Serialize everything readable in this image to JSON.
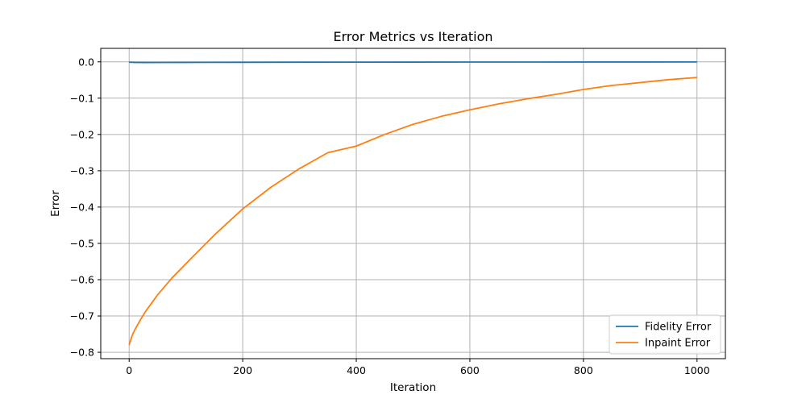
{
  "chart_data": {
    "type": "line",
    "title": "Error Metrics vs Iteration",
    "xlabel": "Iteration",
    "ylabel": "Error",
    "xlim": [
      -50,
      1050
    ],
    "ylim": [
      -0.8176,
      0.0372
    ],
    "xticks": [
      0,
      200,
      400,
      600,
      800,
      1000
    ],
    "xtick_labels": [
      "0",
      "200",
      "400",
      "600",
      "800",
      "1000"
    ],
    "yticks": [
      0.0,
      -0.1,
      -0.2,
      -0.3,
      -0.4,
      -0.5,
      -0.6,
      -0.7,
      -0.8
    ],
    "ytick_labels": [
      "0.0",
      "−0.1",
      "−0.2",
      "−0.3",
      "−0.4",
      "−0.5",
      "−0.6",
      "−0.7",
      "−0.8"
    ],
    "grid": true,
    "legend_position": "bottom-right",
    "series": [
      {
        "name": "Fidelity Error",
        "color": "#1f77b4",
        "x": [
          0,
          10,
          30,
          60,
          100,
          200,
          300,
          400,
          500,
          600,
          700,
          800,
          900,
          1000
        ],
        "y": [
          -0.001,
          -0.0015,
          -0.0018,
          -0.0017,
          -0.0015,
          -0.0012,
          -0.001,
          -0.0008,
          -0.0007,
          -0.0006,
          -0.0005,
          -0.0004,
          -0.0004,
          -0.0003
        ]
      },
      {
        "name": "Inpaint Error",
        "color": "#ff7f0e",
        "x": [
          0,
          5,
          10,
          20,
          30,
          50,
          75,
          100,
          150,
          200,
          250,
          300,
          350,
          400,
          450,
          500,
          550,
          600,
          650,
          700,
          750,
          800,
          850,
          900,
          950,
          1000
        ],
        "y": [
          -0.78,
          -0.755,
          -0.738,
          -0.71,
          -0.685,
          -0.642,
          -0.596,
          -0.556,
          -0.477,
          -0.405,
          -0.345,
          -0.294,
          -0.25,
          -0.232,
          -0.2,
          -0.172,
          -0.15,
          -0.132,
          -0.116,
          -0.102,
          -0.09,
          -0.076,
          -0.065,
          -0.057,
          -0.049,
          -0.043
        ]
      }
    ]
  }
}
